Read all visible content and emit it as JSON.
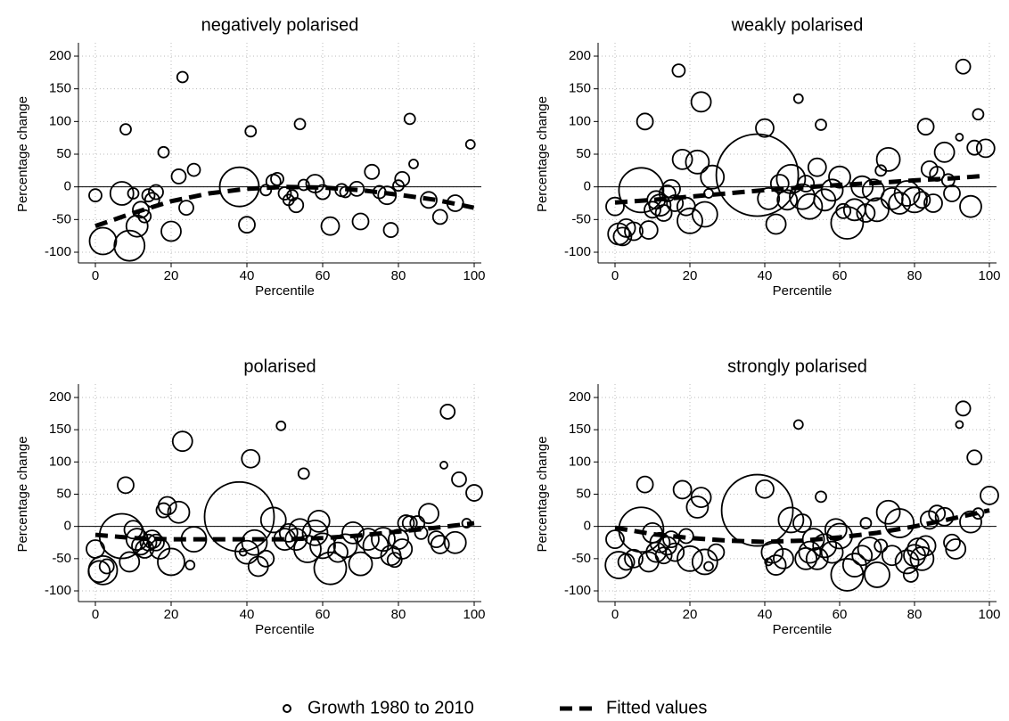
{
  "chart_data": [
    {
      "type": "scatter",
      "title": "negatively polarised",
      "x_label": "Percentile",
      "y_label": "Percentage change",
      "xlim": [
        0,
        100
      ],
      "ylim": [
        -100,
        200
      ],
      "xticks": [
        0,
        20,
        40,
        60,
        80,
        100
      ],
      "yticks": [
        -100,
        -50,
        0,
        50,
        100,
        150,
        200
      ],
      "grid": true,
      "yline": 0,
      "scatter": {
        "color": "#000000",
        "x": [
          0,
          2,
          7,
          8,
          9,
          10,
          11,
          12,
          13,
          14,
          15,
          16,
          18,
          20,
          22,
          23,
          24,
          26,
          38,
          40,
          41,
          45,
          47,
          48,
          50,
          51,
          52,
          53,
          54,
          55,
          58,
          60,
          62,
          65,
          66,
          69,
          70,
          73,
          75,
          77,
          78,
          80,
          81,
          83,
          84,
          88,
          91,
          95,
          99
        ],
        "values": [
          -13,
          -83,
          -10,
          88,
          -90,
          -10,
          -60,
          -35,
          -45,
          -13,
          -20,
          -8,
          53,
          -68,
          16,
          168,
          -32,
          26,
          0,
          -58,
          85,
          -5,
          8,
          12,
          -10,
          -20,
          -13,
          -28,
          96,
          3,
          5,
          -8,
          -60,
          -5,
          -8,
          -3,
          -53,
          23,
          -8,
          -13,
          -66,
          2,
          12,
          104,
          35,
          -20,
          -46,
          -25,
          65
        ],
        "sizes": [
          7,
          15,
          13,
          6,
          17,
          6,
          12,
          9,
          7,
          7,
          8,
          8,
          6,
          11,
          8,
          6,
          8,
          7,
          22,
          9,
          6,
          6,
          8,
          7,
          7,
          6,
          6,
          8,
          6,
          6,
          10,
          8,
          10,
          7,
          6,
          8,
          9,
          8,
          7,
          10,
          8,
          6,
          8,
          6,
          5,
          9,
          8,
          9,
          5
        ]
      },
      "fit": {
        "color": "#000000",
        "x": [
          0,
          10,
          20,
          30,
          40,
          50,
          60,
          70,
          80,
          90,
          100
        ],
        "values": [
          -60,
          -40,
          -22,
          -10,
          -3,
          0,
          -1,
          -5,
          -12,
          -20,
          -32
        ]
      }
    },
    {
      "type": "scatter",
      "title": "weakly polarised",
      "x_label": "Percentile",
      "y_label": "Percentage change",
      "xlim": [
        0,
        100
      ],
      "ylim": [
        -100,
        200
      ],
      "xticks": [
        0,
        20,
        40,
        60,
        80,
        100
      ],
      "yticks": [
        -100,
        -50,
        0,
        50,
        100,
        150,
        200
      ],
      "grid": true,
      "yline": 0,
      "scatter": {
        "color": "#000000",
        "x": [
          0,
          1,
          2,
          3,
          5,
          7,
          8,
          9,
          10,
          11,
          12,
          13,
          14,
          15,
          16,
          17,
          18,
          19,
          20,
          22,
          23,
          24,
          25,
          26,
          38,
          40,
          41,
          43,
          44,
          46,
          47,
          49,
          50,
          51,
          52,
          54,
          55,
          56,
          58,
          60,
          61,
          62,
          64,
          66,
          67,
          69,
          70,
          71,
          73,
          74,
          76,
          78,
          80,
          82,
          83,
          84,
          85,
          86,
          88,
          89,
          90,
          92,
          93,
          95,
          96,
          97,
          99
        ],
        "values": [
          -30,
          -72,
          -76,
          -63,
          -68,
          -5,
          100,
          -66,
          -35,
          -20,
          -28,
          -40,
          -10,
          -3,
          -25,
          178,
          42,
          -30,
          -52,
          38,
          130,
          -42,
          -10,
          15,
          18,
          90,
          -18,
          -57,
          5,
          -20,
          12,
          135,
          -15,
          5,
          -30,
          30,
          95,
          -20,
          -5,
          15,
          -37,
          -55,
          -35,
          0,
          -40,
          -5,
          -35,
          25,
          42,
          -18,
          -25,
          -10,
          -20,
          -20,
          92,
          27,
          -25,
          20,
          53,
          10,
          -10,
          76,
          184,
          -30,
          60,
          111,
          59
        ],
        "sizes": [
          10,
          12,
          10,
          10,
          10,
          25,
          9,
          10,
          9,
          10,
          12,
          9,
          9,
          10,
          9,
          7,
          11,
          10,
          14,
          13,
          11,
          14,
          5,
          13,
          46,
          10,
          12,
          11,
          10,
          11,
          16,
          5,
          14,
          9,
          14,
          10,
          6,
          12,
          12,
          12,
          8,
          18,
          12,
          12,
          10,
          12,
          13,
          6,
          13,
          12,
          12,
          14,
          14,
          9,
          9,
          9,
          10,
          8,
          11,
          7,
          9,
          4,
          8,
          12,
          8,
          6,
          10
        ]
      },
      "fit": {
        "color": "#000000",
        "x": [
          0,
          10,
          20,
          30,
          40,
          50,
          60,
          70,
          80,
          90,
          99
        ],
        "values": [
          -24,
          -20,
          -15,
          -10,
          -5,
          -1,
          3,
          6,
          10,
          13,
          17
        ]
      }
    },
    {
      "type": "scatter",
      "title": "polarised",
      "x_label": "Percentile",
      "y_label": "Percentage change",
      "xlim": [
        0,
        100
      ],
      "ylim": [
        -100,
        200
      ],
      "xticks": [
        0,
        20,
        40,
        60,
        80,
        100
      ],
      "yticks": [
        -100,
        -50,
        0,
        50,
        100,
        150,
        200
      ],
      "grid": true,
      "yline": 0,
      "scatter": {
        "color": "#000000",
        "x": [
          0,
          1,
          2,
          3,
          7,
          8,
          9,
          10,
          11,
          12,
          13,
          14,
          15,
          16,
          17,
          18,
          19,
          20,
          22,
          23,
          25,
          26,
          38,
          39,
          40,
          41,
          42,
          43,
          45,
          47,
          49,
          50,
          51,
          53,
          54,
          55,
          56,
          58,
          59,
          60,
          62,
          64,
          66,
          68,
          70,
          72,
          74,
          76,
          78,
          79,
          80,
          81,
          82,
          83,
          85,
          86,
          88,
          90,
          91,
          92,
          93,
          95,
          96,
          98,
          100
        ],
        "values": [
          -35,
          -70,
          -68,
          -62,
          -15,
          64,
          -55,
          -5,
          -20,
          -30,
          -35,
          -25,
          -20,
          -25,
          -35,
          25,
          32,
          -55,
          22,
          132,
          -60,
          -20,
          15,
          -40,
          -40,
          105,
          -25,
          -62,
          -50,
          10,
          156,
          -20,
          -10,
          -20,
          -5,
          82,
          -35,
          -10,
          8,
          -30,
          -65,
          -40,
          -30,
          -10,
          -58,
          -20,
          -30,
          -20,
          -45,
          -52,
          -20,
          -35,
          5,
          5,
          5,
          -10,
          20,
          -20,
          -28,
          95,
          178,
          -25,
          73,
          5,
          52
        ],
        "sizes": [
          10,
          12,
          16,
          8,
          25,
          9,
          11,
          10,
          12,
          10,
          10,
          9,
          10,
          9,
          11,
          8,
          10,
          15,
          12,
          11,
          5,
          14,
          39,
          4,
          13,
          10,
          14,
          11,
          9,
          14,
          5,
          12,
          10,
          12,
          12,
          6,
          15,
          14,
          12,
          14,
          18,
          11,
          13,
          12,
          13,
          12,
          14,
          13,
          11,
          8,
          11,
          11,
          9,
          8,
          8,
          7,
          11,
          9,
          10,
          4,
          8,
          12,
          8,
          5,
          9
        ]
      },
      "fit": {
        "color": "#000000",
        "x": [
          0,
          10,
          20,
          30,
          40,
          50,
          60,
          70,
          80,
          90,
          100
        ],
        "values": [
          -13,
          -18,
          -20,
          -20,
          -20,
          -20,
          -18,
          -14,
          -8,
          -2,
          5
        ]
      }
    },
    {
      "type": "scatter",
      "title": "strongly polarised",
      "x_label": "Percentile",
      "y_label": "Percentage change",
      "xlim": [
        0,
        100
      ],
      "ylim": [
        -100,
        200
      ],
      "xticks": [
        0,
        20,
        40,
        60,
        80,
        100
      ],
      "yticks": [
        -100,
        -50,
        0,
        50,
        100,
        150,
        200
      ],
      "grid": true,
      "yline": 0,
      "scatter": {
        "color": "#000000",
        "x": [
          0,
          1,
          3,
          5,
          7,
          8,
          9,
          10,
          11,
          12,
          13,
          14,
          15,
          16,
          18,
          19,
          20,
          22,
          23,
          24,
          25,
          27,
          38,
          40,
          41,
          42,
          43,
          45,
          47,
          49,
          50,
          51,
          52,
          53,
          54,
          55,
          56,
          58,
          59,
          60,
          62,
          64,
          66,
          67,
          68,
          70,
          71,
          73,
          74,
          76,
          78,
          79,
          80,
          81,
          82,
          83,
          84,
          86,
          88,
          90,
          91,
          92,
          93,
          95,
          96,
          97,
          100
        ],
        "values": [
          -20,
          -60,
          -55,
          -50,
          -5,
          65,
          -55,
          -10,
          -40,
          -25,
          -45,
          -30,
          -20,
          -40,
          57,
          -15,
          -50,
          30,
          45,
          -55,
          -62,
          -40,
          25,
          58,
          -55,
          -40,
          -60,
          -50,
          10,
          158,
          5,
          -50,
          -40,
          -20,
          -50,
          46,
          -30,
          -40,
          -5,
          -15,
          -75,
          -60,
          -45,
          5,
          -35,
          -75,
          -30,
          22,
          -45,
          5,
          -55,
          -75,
          -45,
          -35,
          -50,
          -30,
          10,
          20,
          15,
          -25,
          -35,
          158,
          183,
          7,
          107,
          20,
          48
        ],
        "sizes": [
          10,
          15,
          9,
          10,
          25,
          9,
          11,
          11,
          11,
          11,
          9,
          10,
          9,
          10,
          10,
          8,
          14,
          12,
          11,
          14,
          5,
          9,
          40,
          10,
          4,
          12,
          11,
          11,
          14,
          5,
          10,
          12,
          12,
          12,
          12,
          6,
          13,
          12,
          12,
          14,
          18,
          13,
          11,
          6,
          13,
          14,
          7,
          13,
          11,
          16,
          13,
          8,
          12,
          12,
          13,
          11,
          10,
          9,
          10,
          9,
          11,
          4,
          8,
          12,
          8,
          6,
          10
        ]
      },
      "fit": {
        "color": "#000000",
        "x": [
          0,
          10,
          20,
          30,
          40,
          50,
          60,
          70,
          80,
          90,
          100
        ],
        "values": [
          -2,
          -12,
          -18,
          -22,
          -24,
          -22,
          -17,
          -10,
          0,
          12,
          25
        ]
      }
    }
  ],
  "legend": {
    "position": "bottom",
    "entries": [
      "Growth 1980 to 2010",
      "Fitted values"
    ]
  }
}
